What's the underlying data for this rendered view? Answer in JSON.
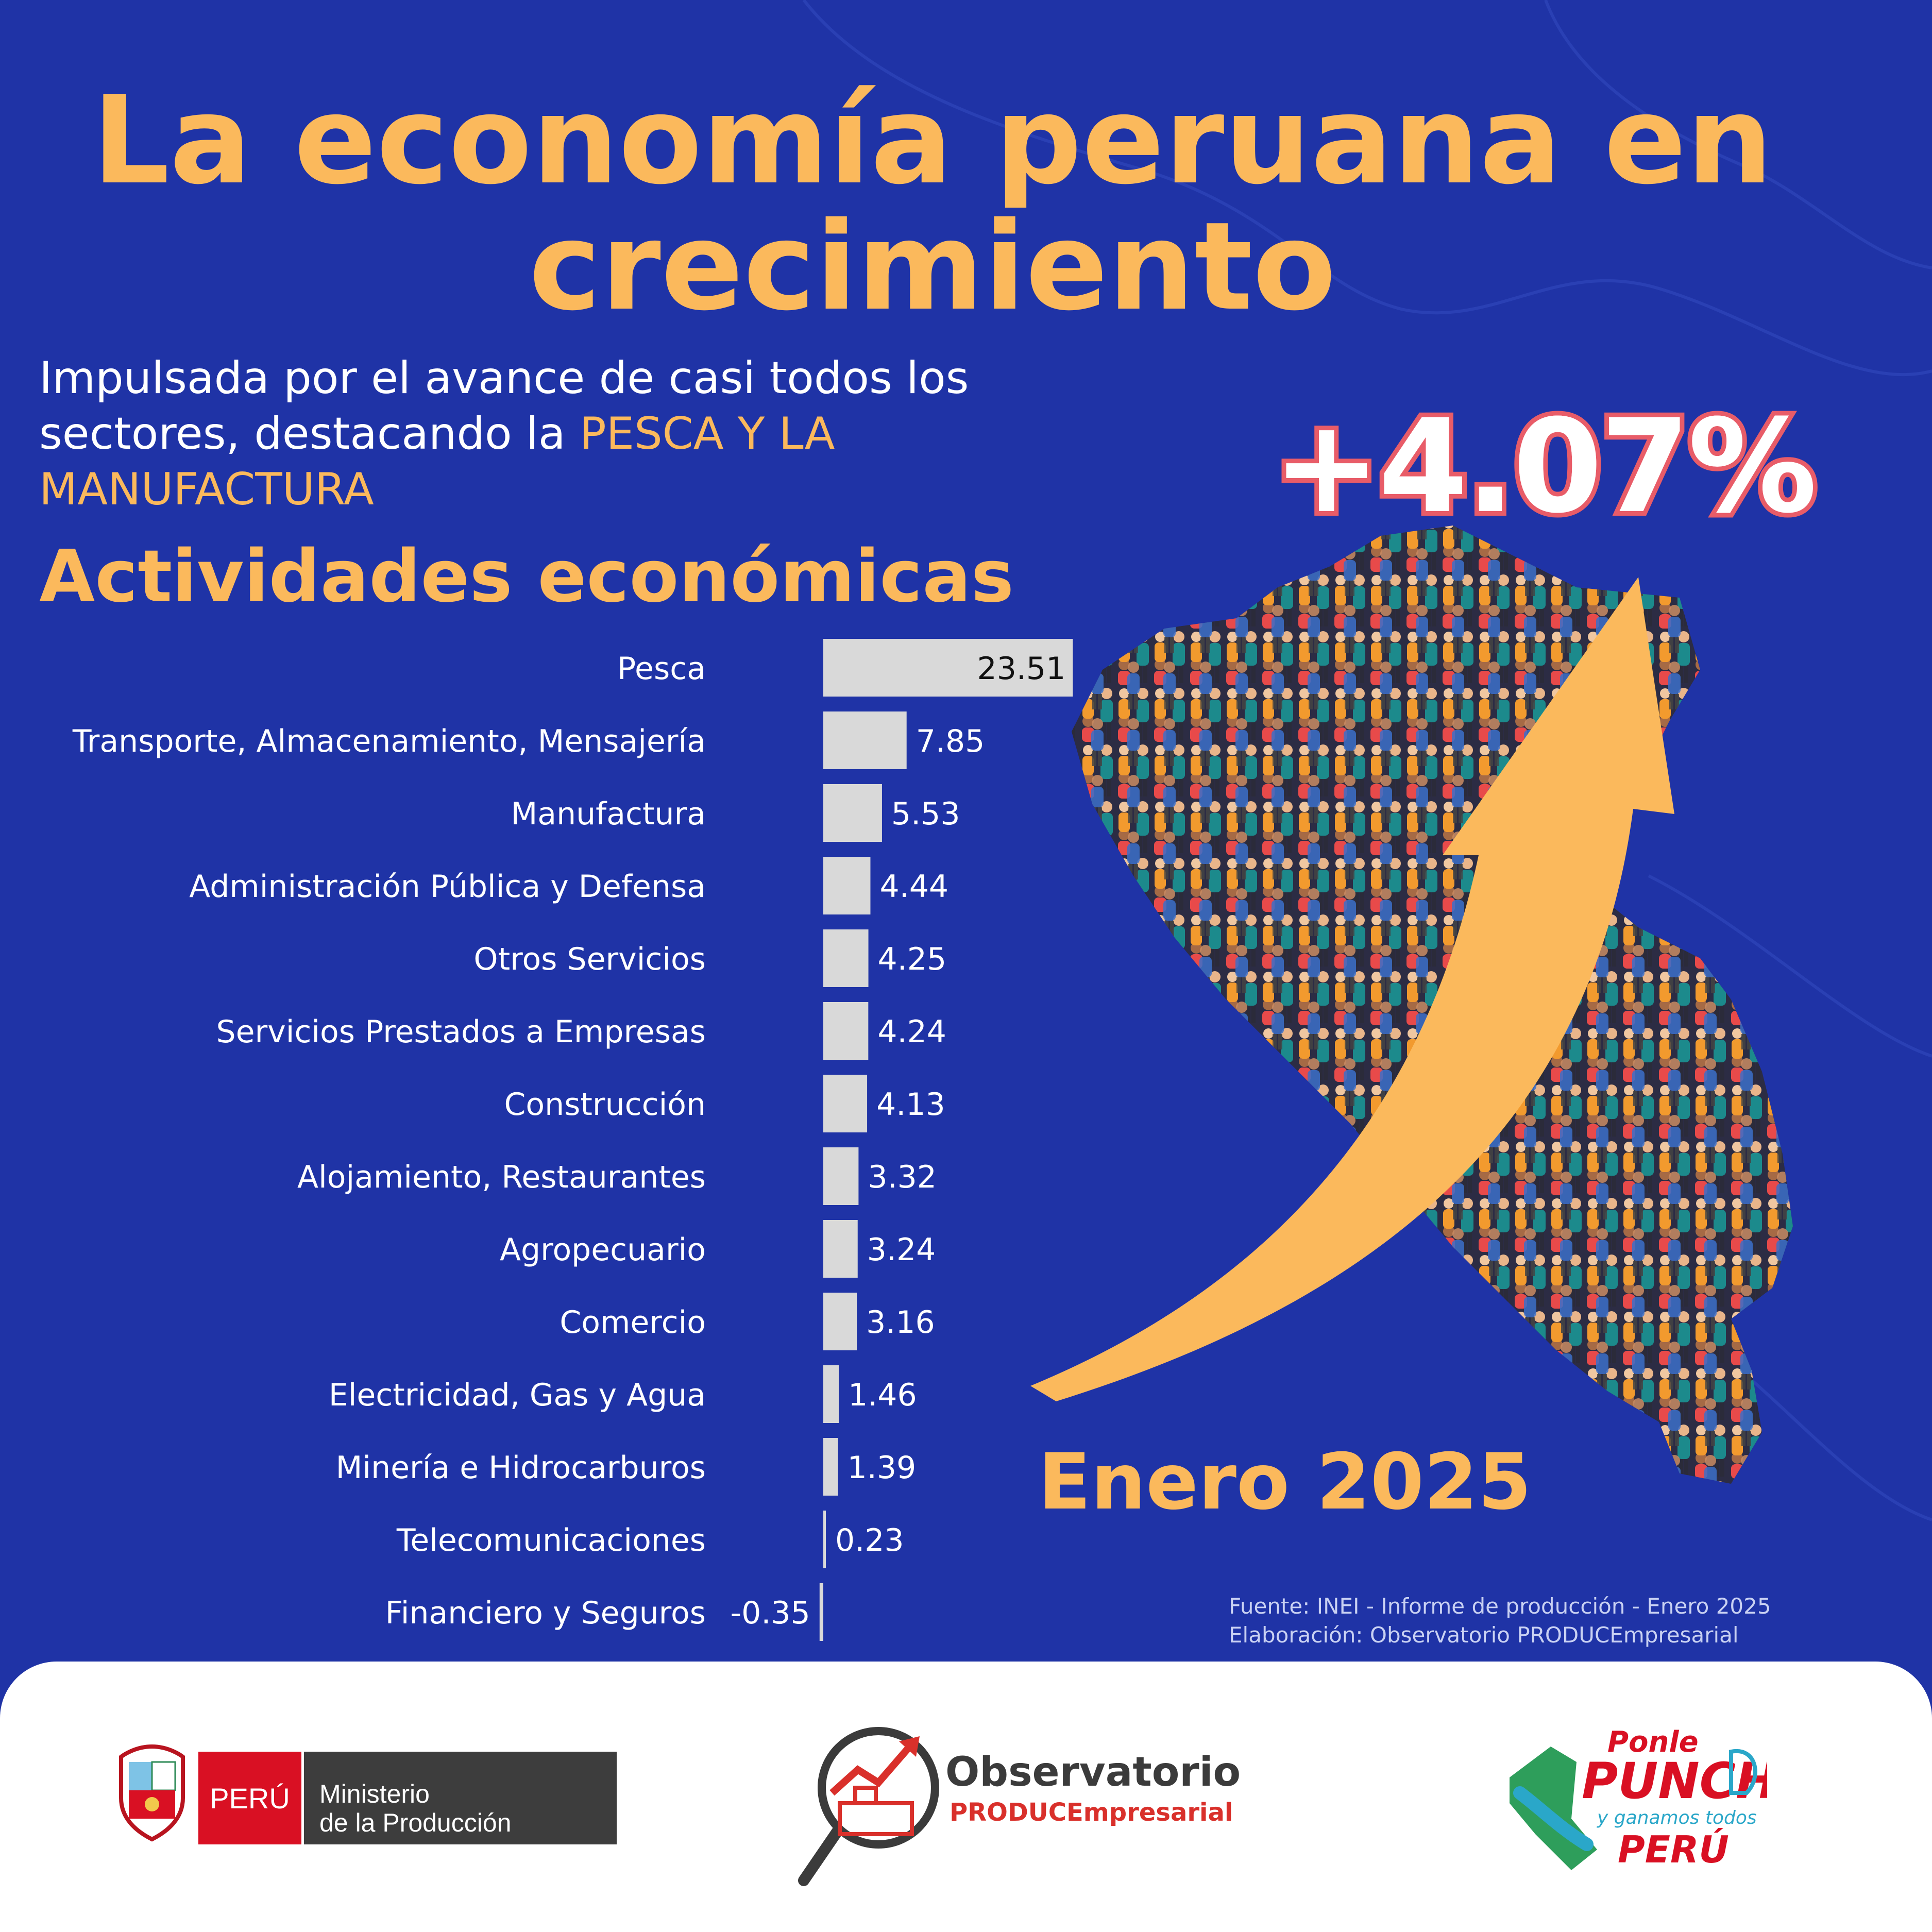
{
  "title": "La economía peruana en crecimiento",
  "subtitle": {
    "text": "Impulsada por el avance de casi todos los sectores, destacando la",
    "highlight": "PESCA Y LA MANUFACTURA"
  },
  "section_title": "Actividades económicas",
  "headline_value": "+4.07%",
  "period": "Enero 2025",
  "source_lines": [
    "Fuente: INEI - Informe de producción - Enero 2025",
    "Elaboración: Observatorio PRODUCEmpresarial"
  ],
  "colors": {
    "background": "#1f33a6",
    "accent": "#fbb95c",
    "bar": "#d9d9d9",
    "headline_outline": "#e85c68"
  },
  "chart_data": {
    "type": "bar",
    "orientation": "horizontal",
    "categories": [
      "Pesca",
      "Transporte, Almacenamiento, Mensajería",
      "Manufactura",
      "Administración Pública y Defensa",
      "Otros Servicios",
      "Servicios Prestados a Empresas",
      "Construcción",
      "Alojamiento, Restaurantes",
      "Agropecuario",
      "Comercio",
      "Electricidad, Gas y Agua",
      "Minería e Hidrocarburos",
      "Telecomunicaciones",
      "Financiero y Seguros"
    ],
    "values": [
      23.51,
      7.85,
      5.53,
      4.44,
      4.25,
      4.24,
      4.13,
      3.32,
      3.24,
      3.16,
      1.46,
      1.39,
      0.23,
      -0.35
    ],
    "value_labels": [
      "23.51",
      "7.85",
      "5.53",
      "4.44",
      "4.25",
      "4.24",
      "4.13",
      "3.32",
      "3.24",
      "3.16",
      "1.46",
      "1.39",
      "0.23",
      "-0.35"
    ],
    "title": "Actividades económicas",
    "xlabel": "",
    "ylabel": "",
    "xlim": [
      -0.35,
      23.51
    ],
    "grid": false,
    "legend": "none"
  },
  "footer": {
    "gov_country": "PERÚ",
    "gov_ministry_line1": "Ministerio",
    "gov_ministry_line2": "de la Producción",
    "obs_name": "Observatorio",
    "obs_sub": "PRODUCEmpresarial",
    "icons": [
      "peru-coat-of-arms-icon",
      "magnifier-chart-icon",
      "ponle-punche-logo-icon"
    ]
  }
}
